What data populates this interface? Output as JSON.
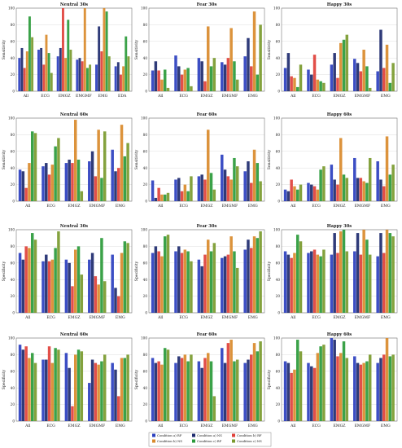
{
  "colors": {
    "a_rf": "#2b3fbf",
    "b_rf": "#e0403a",
    "a_ns": "#1d2a6e",
    "b_ns": "#d98a2b",
    "c_rf": "#2a9a3a",
    "c_ns": "#7a9a2e",
    "grid": "#dddddd",
    "axis": "#777777"
  },
  "legend": {
    "entries": [
      {
        "key": "a_rf",
        "label": "Condition a) RF"
      },
      {
        "key": "a_ns",
        "label": "Condition a) NS"
      },
      {
        "key": "b_rf",
        "label": "Condition b) RF"
      },
      {
        "key": "b_ns",
        "label": "Condition b) NS"
      },
      {
        "key": "c_rf",
        "label": "Condition c) RF"
      },
      {
        "key": "c_ns",
        "label": "Condition c) NS"
      }
    ]
  },
  "chart_data": [
    {
      "type": "bar",
      "title": "Neutral 30s",
      "ylabel": "Sensitivity",
      "ylim": [
        0,
        100
      ],
      "categories": [
        "All",
        "ECG",
        "EMGZ",
        "EMGMF",
        "EMG",
        "EDA"
      ],
      "series": [
        {
          "name": "Condition a) RF",
          "values": [
            40,
            50,
            42,
            38,
            32,
            30
          ]
        },
        {
          "name": "Condition a) NS",
          "values": [
            52,
            52,
            52,
            40,
            78,
            35
          ]
        },
        {
          "name": "Condition b) RF",
          "values": [
            28,
            32,
            100,
            36,
            48,
            20
          ]
        },
        {
          "name": "Condition b) NS",
          "values": [
            48,
            68,
            40,
            100,
            100,
            30
          ]
        },
        {
          "name": "Condition c) RF",
          "values": [
            90,
            46,
            86,
            28,
            96,
            66
          ]
        },
        {
          "name": "Condition c) NS",
          "values": [
            65,
            22,
            50,
            32,
            42,
            42
          ]
        }
      ]
    },
    {
      "type": "bar",
      "title": "Fear 30s",
      "ylabel": "Sensitivity",
      "ylim": [
        0,
        100
      ],
      "categories": [
        "All",
        "ECG",
        "EMGZ",
        "EMGMF",
        "EMG"
      ],
      "series": [
        {
          "name": "Condition a) RF",
          "values": [
            25,
            43,
            40,
            35,
            42
          ]
        },
        {
          "name": "Condition a) NS",
          "values": [
            36,
            30,
            36,
            32,
            64
          ]
        },
        {
          "name": "Condition b) RF",
          "values": [
            25,
            20,
            12,
            40,
            30
          ]
        },
        {
          "name": "Condition b) NS",
          "values": [
            14,
            26,
            78,
            76,
            96
          ]
        },
        {
          "name": "Condition c) RF",
          "values": [
            26,
            28,
            30,
            36,
            20
          ]
        },
        {
          "name": "Condition c) NS",
          "values": [
            4,
            6,
            40,
            14,
            80
          ]
        }
      ]
    },
    {
      "type": "bar",
      "title": "Happy 30s",
      "ylabel": "Sensitivity",
      "ylim": [
        0,
        100
      ],
      "categories": [
        "All",
        "ECG",
        "EMGZ",
        "EMGMF",
        "EMG"
      ],
      "series": [
        {
          "name": "Condition a) RF",
          "values": [
            28,
            26,
            32,
            39,
            24
          ]
        },
        {
          "name": "Condition a) NS",
          "values": [
            46,
            20,
            46,
            34,
            74
          ]
        },
        {
          "name": "Condition b) RF",
          "values": [
            18,
            44,
            16,
            24,
            28
          ]
        },
        {
          "name": "Condition b) NS",
          "values": [
            16,
            14,
            58,
            50,
            56
          ]
        },
        {
          "name": "Condition c) RF",
          "values": [
            5,
            12,
            62,
            30,
            10
          ]
        },
        {
          "name": "Condition c) NS",
          "values": [
            32,
            10,
            68,
            4,
            34
          ]
        }
      ]
    },
    {
      "type": "bar",
      "title": "Neutral 60s",
      "ylabel": "Sensitivity",
      "ylim": [
        0,
        100
      ],
      "categories": [
        "All",
        "ECG",
        "EMGZ",
        "EMGMF",
        "EMG"
      ],
      "series": [
        {
          "name": "Condition a) RF",
          "values": [
            38,
            42,
            46,
            48,
            62
          ]
        },
        {
          "name": "Condition a) NS",
          "values": [
            36,
            46,
            50,
            60,
            36
          ]
        },
        {
          "name": "Condition b) RF",
          "values": [
            16,
            32,
            46,
            30,
            40
          ]
        },
        {
          "name": "Condition b) NS",
          "values": [
            46,
            44,
            98,
            86,
            92
          ]
        },
        {
          "name": "Condition c) RF",
          "values": [
            84,
            66,
            50,
            28,
            54
          ]
        },
        {
          "name": "Condition c) NS",
          "values": [
            82,
            76,
            12,
            84,
            70
          ]
        }
      ]
    },
    {
      "type": "bar",
      "title": "Fear 60s",
      "ylabel": "Sensitivity",
      "ylim": [
        0,
        100
      ],
      "categories": [
        "All",
        "ECG",
        "EMGZ",
        "EMGMF",
        "EMG"
      ],
      "series": [
        {
          "name": "Condition a) RF",
          "values": [
            25,
            26,
            30,
            56,
            36
          ]
        },
        {
          "name": "Condition a) NS",
          "values": [
            4,
            28,
            32,
            38,
            48
          ]
        },
        {
          "name": "Condition b) RF",
          "values": [
            16,
            12,
            26,
            30,
            22
          ]
        },
        {
          "name": "Condition b) NS",
          "values": [
            8,
            20,
            86,
            26,
            62
          ]
        },
        {
          "name": "Condition c) RF",
          "values": [
            8,
            12,
            34,
            52,
            46
          ]
        },
        {
          "name": "Condition c) NS",
          "values": [
            10,
            30,
            14,
            42,
            24
          ]
        }
      ]
    },
    {
      "type": "bar",
      "title": "Happy 60s",
      "ylabel": "Sensitivity",
      "ylim": [
        0,
        100
      ],
      "categories": [
        "All",
        "ECG",
        "EMGZ",
        "EMGMF",
        "EMG"
      ],
      "series": [
        {
          "name": "Condition a) RF",
          "values": [
            14,
            22,
            44,
            52,
            48
          ]
        },
        {
          "name": "Condition a) NS",
          "values": [
            12,
            20,
            26,
            28,
            26
          ]
        },
        {
          "name": "Condition b) RF",
          "values": [
            26,
            18,
            20,
            28,
            18
          ]
        },
        {
          "name": "Condition b) NS",
          "values": [
            18,
            14,
            76,
            24,
            78
          ]
        },
        {
          "name": "Condition c) RF",
          "values": [
            14,
            38,
            32,
            22,
            32
          ]
        },
        {
          "name": "Condition c) NS",
          "values": [
            20,
            42,
            28,
            52,
            44
          ]
        }
      ]
    },
    {
      "type": "bar",
      "title": "Neutral 30s",
      "ylabel": "Specificity",
      "ylim": [
        0,
        100
      ],
      "categories": [
        "All",
        "ECG",
        "EMGZ",
        "EMGMF",
        "EMG"
      ],
      "series": [
        {
          "name": "Condition a) RF",
          "values": [
            72,
            62,
            64,
            64,
            70
          ]
        },
        {
          "name": "Condition a) NS",
          "values": [
            64,
            70,
            60,
            72,
            30
          ]
        },
        {
          "name": "Condition b) RF",
          "values": [
            80,
            62,
            32,
            44,
            20
          ]
        },
        {
          "name": "Condition b) NS",
          "values": [
            78,
            64,
            76,
            34,
            72
          ]
        },
        {
          "name": "Condition c) RF",
          "values": [
            96,
            78,
            80,
            90,
            86
          ]
        },
        {
          "name": "Condition c) NS",
          "values": [
            88,
            98,
            46,
            38,
            84
          ]
        }
      ]
    },
    {
      "type": "bar",
      "title": "Fear 30s",
      "ylabel": "Specificity",
      "ylim": [
        0,
        100
      ],
      "categories": [
        "All",
        "ECG",
        "EMGZ",
        "EMGMF",
        "EMG"
      ],
      "series": [
        {
          "name": "Condition a) RF",
          "values": [
            72,
            74,
            64,
            66,
            76
          ]
        },
        {
          "name": "Condition a) NS",
          "values": [
            80,
            80,
            56,
            68,
            88
          ]
        },
        {
          "name": "Condition b) RF",
          "values": [
            74,
            72,
            70,
            70,
            78
          ]
        },
        {
          "name": "Condition b) NS",
          "values": [
            68,
            76,
            88,
            92,
            92
          ]
        },
        {
          "name": "Condition c) RF",
          "values": [
            92,
            74,
            74,
            74,
            90
          ]
        },
        {
          "name": "Condition c) NS",
          "values": [
            94,
            62,
            84,
            54,
            98
          ]
        }
      ]
    },
    {
      "type": "bar",
      "title": "Happy 30s",
      "ylabel": "Specificity",
      "ylim": [
        0,
        100
      ],
      "categories": [
        "All",
        "ECG",
        "EMGZ",
        "EMGMF",
        "EMG"
      ],
      "series": [
        {
          "name": "Condition a) RF",
          "values": [
            74,
            72,
            70,
            74,
            68
          ]
        },
        {
          "name": "Condition a) NS",
          "values": [
            70,
            74,
            96,
            96,
            96
          ]
        },
        {
          "name": "Condition b) RF",
          "values": [
            66,
            76,
            72,
            70,
            72
          ]
        },
        {
          "name": "Condition b) NS",
          "values": [
            72,
            70,
            98,
            100,
            100
          ]
        },
        {
          "name": "Condition c) RF",
          "values": [
            94,
            68,
            100,
            88,
            96
          ]
        },
        {
          "name": "Condition c) NS",
          "values": [
            86,
            76,
            74,
            70,
            92
          ]
        }
      ]
    },
    {
      "type": "bar",
      "title": "Neutral 60s",
      "ylabel": "Specificity",
      "ylim": [
        0,
        100
      ],
      "categories": [
        "All",
        "ECG",
        "EMGZ",
        "EMGMF",
        "EMG"
      ],
      "series": [
        {
          "name": "Condition a) RF",
          "values": [
            92,
            74,
            82,
            46,
            70
          ]
        },
        {
          "name": "Condition a) NS",
          "values": [
            86,
            74,
            64,
            74,
            62
          ]
        },
        {
          "name": "Condition b) RF",
          "values": [
            90,
            90,
            18,
            70,
            30
          ]
        },
        {
          "name": "Condition b) NS",
          "values": [
            76,
            70,
            80,
            68,
            76
          ]
        },
        {
          "name": "Condition c) RF",
          "values": [
            82,
            88,
            86,
            72,
            76
          ]
        },
        {
          "name": "Condition c) NS",
          "values": [
            70,
            86,
            84,
            80,
            80
          ]
        }
      ]
    },
    {
      "type": "bar",
      "title": "Fear 60s",
      "ylabel": "Specificity",
      "ylim": [
        0,
        100
      ],
      "categories": [
        "All",
        "ECG",
        "EMGZ",
        "EMGMF",
        "EMG"
      ],
      "series": [
        {
          "name": "Condition a) RF",
          "values": [
            76,
            70,
            72,
            88,
            70
          ]
        },
        {
          "name": "Condition a) NS",
          "values": [
            70,
            78,
            64,
            70,
            74
          ]
        },
        {
          "name": "Condition b) RF",
          "values": [
            72,
            76,
            76,
            94,
            80
          ]
        },
        {
          "name": "Condition b) NS",
          "values": [
            68,
            80,
            82,
            98,
            94
          ]
        },
        {
          "name": "Condition c) RF",
          "values": [
            88,
            72,
            72,
            72,
            84
          ]
        },
        {
          "name": "Condition c) NS",
          "values": [
            86,
            80,
            30,
            74,
            96
          ]
        }
      ]
    },
    {
      "type": "bar",
      "title": "Happy 60s",
      "ylabel": "Specificity",
      "ylim": [
        0,
        100
      ],
      "categories": [
        "All",
        "ECG",
        "EMGZ",
        "EMGMF",
        "EMG"
      ],
      "series": [
        {
          "name": "Condition a) RF",
          "values": [
            72,
            70,
            100,
            78,
            70
          ]
        },
        {
          "name": "Condition a) NS",
          "values": [
            70,
            66,
            98,
            70,
            76
          ]
        },
        {
          "name": "Condition b) RF",
          "values": [
            58,
            64,
            78,
            68,
            80
          ]
        },
        {
          "name": "Condition b) NS",
          "values": [
            62,
            82,
            82,
            70,
            100
          ]
        },
        {
          "name": "Condition c) RF",
          "values": [
            98,
            90,
            96,
            72,
            78
          ]
        },
        {
          "name": "Condition c) NS",
          "values": [
            84,
            92,
            76,
            80,
            80
          ]
        }
      ]
    }
  ]
}
